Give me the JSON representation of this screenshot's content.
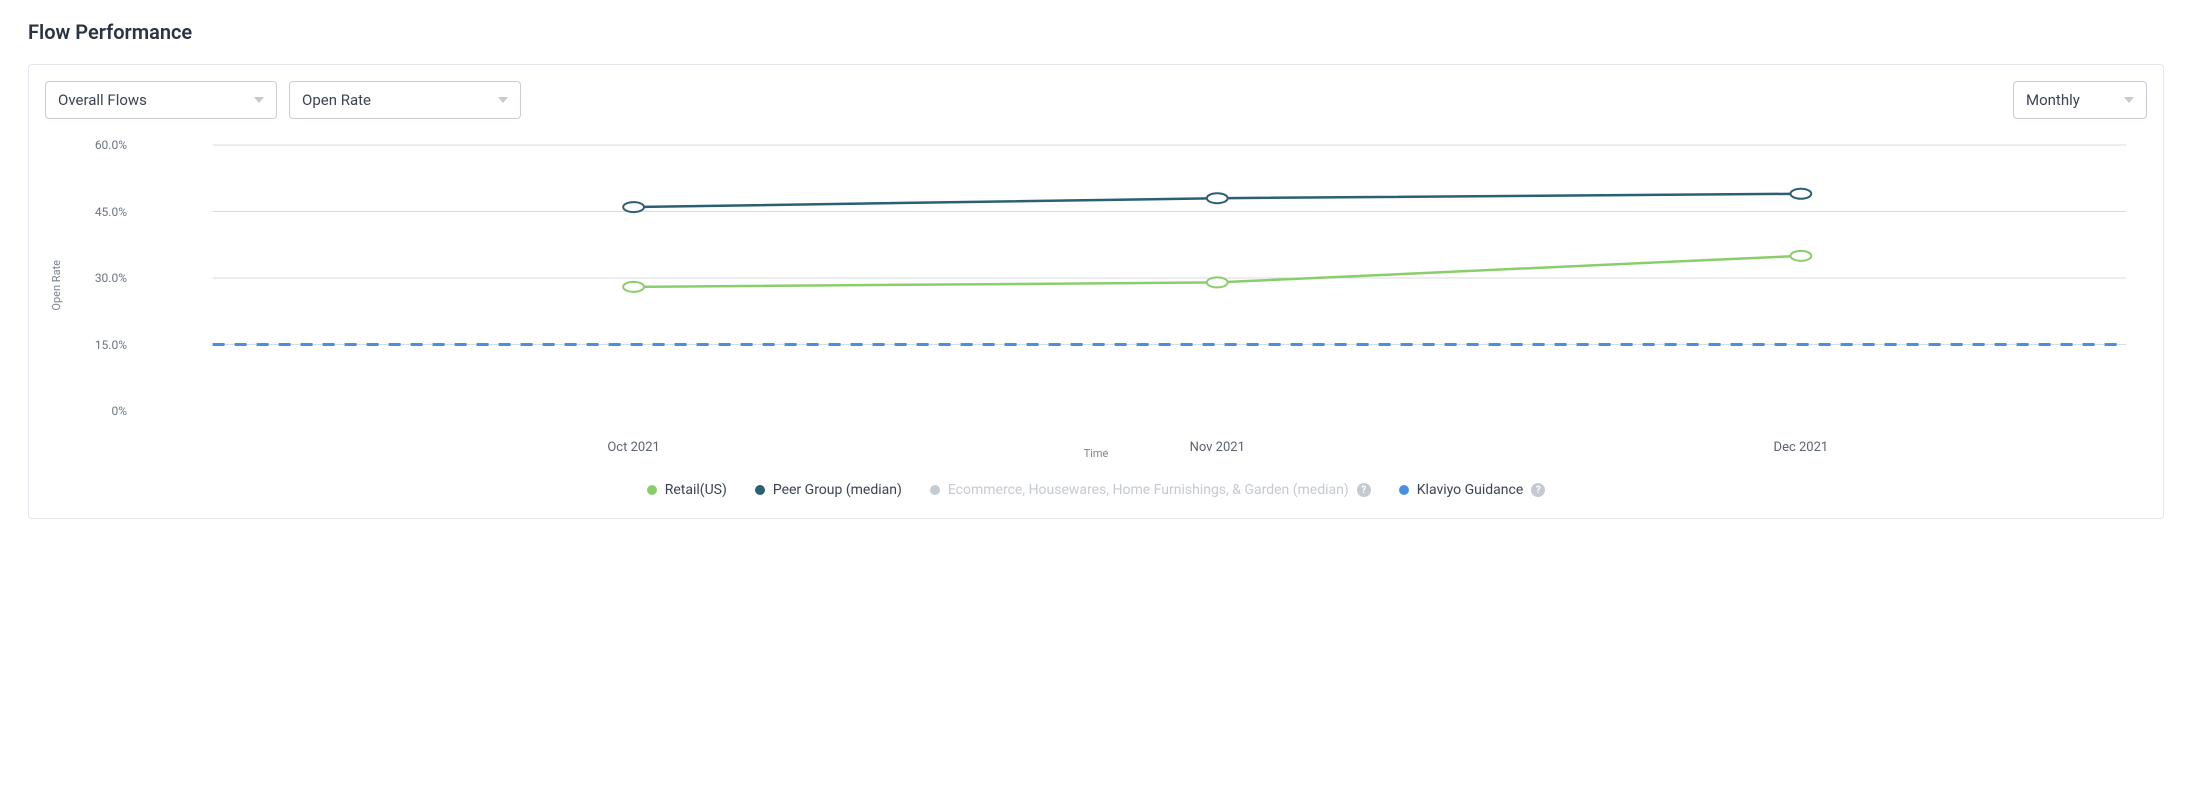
{
  "title": "Flow Performance",
  "controls": {
    "flows": {
      "label": "Overall Flows"
    },
    "metric": {
      "label": "Open Rate"
    },
    "period": {
      "label": "Monthly"
    }
  },
  "chart": {
    "type": "line",
    "y_axis": {
      "title": "Open Rate",
      "min": 0,
      "max": 60,
      "tick_step": 15,
      "ticks": [
        "0%",
        "15.0%",
        "30.0%",
        "45.0%",
        "60.0%"
      ]
    },
    "x_axis": {
      "title": "Time",
      "categories": [
        "Oct 2021",
        "Nov 2021",
        "Dec 2021"
      ]
    },
    "grid_color": "#d7dbe2",
    "background_color": "#ffffff",
    "series": [
      {
        "id": "retail",
        "name": "Retail(US)",
        "color": "#8ace6c",
        "line_width": 2.5,
        "marker_fill": "#ffffff",
        "marker_stroke": "#8ace6c",
        "marker_r": 5,
        "values": [
          28.0,
          29.0,
          35.0
        ],
        "visible": true
      },
      {
        "id": "peer",
        "name": "Peer Group (median)",
        "color": "#2b5f73",
        "line_width": 2.5,
        "marker_fill": "#ffffff",
        "marker_stroke": "#2b5f73",
        "marker_r": 5,
        "values": [
          46.0,
          48.0,
          49.0
        ],
        "visible": true
      },
      {
        "id": "ecom",
        "name": "Ecommerce, Housewares, Home Furnishings, & Garden (median)",
        "color": "#c4c9d2",
        "help": true,
        "line_width": 2.5,
        "marker_fill": "#ffffff",
        "marker_stroke": "#c4c9d2",
        "marker_r": 5,
        "values": null,
        "visible": false
      },
      {
        "id": "guidance",
        "name": "Klaviyo Guidance",
        "color": "#4a90e2",
        "help": true,
        "dash": "12,10",
        "line_width": 3,
        "value": 15.0,
        "kind": "hline",
        "visible": true
      }
    ]
  }
}
